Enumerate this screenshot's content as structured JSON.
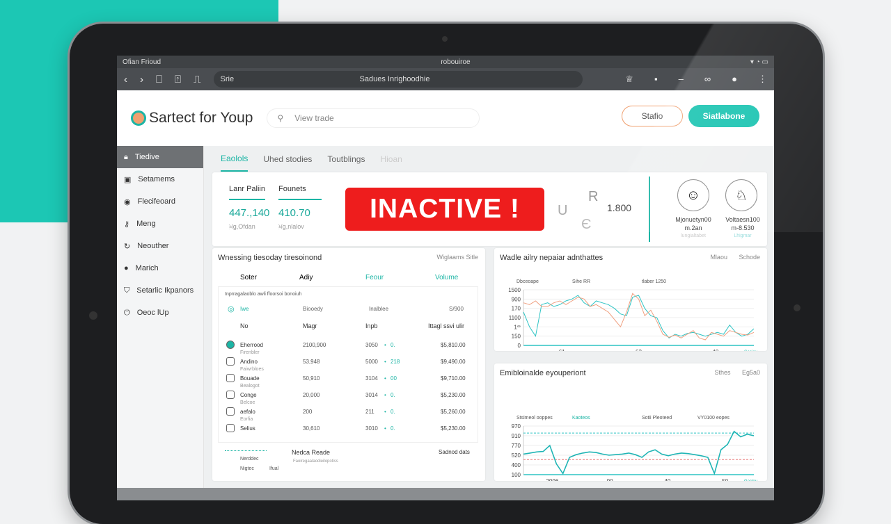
{
  "status_bar": {
    "left": "Ofian Frioud",
    "center": "robouiroe"
  },
  "browser": {
    "url_left": "Srie",
    "url": "Sadues Inrighoodhie"
  },
  "app": {
    "logo": "Sartect for Youp",
    "search_placeholder": "View trade",
    "btn_outline": "Stafio",
    "btn_primary": "Siatlabone"
  },
  "sidebar": {
    "items": [
      {
        "label": "Tiedive",
        "icon": "lock-icon",
        "active": true
      },
      {
        "label": "Setamems",
        "icon": "calendar-icon"
      },
      {
        "label": "Flecifeoard",
        "icon": "globe-icon"
      },
      {
        "label": "Meng",
        "icon": "key-icon"
      },
      {
        "label": "Neouther",
        "icon": "refresh-icon"
      },
      {
        "label": "Marich",
        "icon": "circle-icon"
      },
      {
        "label": "Setarlic Ikpanors",
        "icon": "shield-icon"
      },
      {
        "label": "Oeoc lUp",
        "icon": "power-icon"
      }
    ]
  },
  "tabs": [
    {
      "label": "Eaolols",
      "active": true
    },
    {
      "label": "Uhed stodies"
    },
    {
      "label": "Toutblings"
    },
    {
      "label": "Hioan"
    }
  ],
  "kpis": [
    {
      "label": "Lanr Paliin",
      "value": "447.,140",
      "sub": "ਖ਼g,Ofdan"
    },
    {
      "label": "Founets",
      "value": "410.70",
      "sub": "ਖ਼g,nlalov"
    }
  ],
  "alert": {
    "text": "INACTIVE  !",
    "color": "#ee1d1d"
  },
  "mini": {
    "l1": "U",
    "l2": "R",
    "l3": "Є",
    "value": "1.800"
  },
  "users": [
    {
      "name": "Mjonuetyn00",
      "sub": "m.2an",
      "meta": "lungialtabet"
    },
    {
      "name": "Voltaesn100",
      "sub": "m-8.530",
      "meta": "Lhigmar"
    }
  ],
  "table_panel": {
    "title": "Wnessing tiesoday tiresoinond",
    "right": "Wiglaams  Sitle",
    "cols": [
      "Soter",
      "Adiy",
      "Feour",
      "Volume"
    ],
    "caption": "Inprragalaoblo awli ffoorsoi bonoiuh",
    "filter": [
      "Iwe",
      "Biooedy",
      "Inalblee",
      "S/900"
    ],
    "headers": [
      "No",
      "Magr",
      "Inpb",
      "Ittagl ssvi ulir"
    ],
    "rows": [
      {
        "sub": "",
        "name": "Eherrood",
        "a": "2100,900",
        "b": "3050",
        "c": "0.",
        "d": "$5,810.00"
      },
      {
        "sub": "Firenbler",
        "name": "Andino",
        "a": "53,948",
        "b": "5000",
        "c": "218",
        "d": "$9,490.00"
      },
      {
        "sub": "Faiwrbloes",
        "name": "Bouade",
        "a": "50,910",
        "b": "3104",
        "c": "00",
        "d": "$9,710.00"
      },
      {
        "sub": "Bealogot",
        "name": "Conge",
        "a": "20,000",
        "b": "3014",
        "c": "0.",
        "d": "$5,230.00"
      },
      {
        "sub": "Belcoe",
        "name": "aefalo",
        "a": "200",
        "b": "211",
        "c": "0.",
        "d": "$5,260.00"
      },
      {
        "sub": "Eorfia",
        "name": "Selius",
        "a": "30,610",
        "b": "3010",
        "c": "0.",
        "d": "$5,230.00"
      }
    ],
    "footer": {
      "l1": "Nerddec",
      "l2": "Nigtec",
      "l3": "Ifual",
      "title": "Nedca Reade",
      "subtitle": "Faoiregaalaodieilopotiss",
      "right": "Sadnod dats"
    }
  },
  "chart_data": [
    {
      "type": "line",
      "title": "Wadle ailry nepaiar adnthattes",
      "right_labels": [
        "Mlaou",
        "Schode"
      ],
      "legend_text": [
        "Dbceoape",
        "Sihe RR",
        "tlaber 1250"
      ],
      "yticks": [
        "1500",
        "900",
        "170",
        "1100",
        "1ꟹ",
        "150",
        "0"
      ],
      "xticks": [
        "61",
        "63",
        "40"
      ],
      "footer": [
        "Gaciou",
        "Greaocdis eonoe"
      ],
      "series": [
        {
          "color": "#2ec4c4",
          "values": [
            900,
            500,
            250,
            1100,
            1150,
            1050,
            1100,
            1200,
            1250,
            1350,
            1150,
            1050,
            1200,
            1150,
            1100,
            1000,
            850,
            800,
            1300,
            1350,
            1000,
            800,
            750,
            400,
            200,
            300,
            250,
            320,
            350,
            300,
            250,
            300,
            350,
            300,
            550,
            350,
            250,
            300,
            450
          ]
        },
        {
          "color": "#f0a080",
          "values": [
            1150,
            1100,
            1200,
            1050,
            1050,
            1150,
            1200,
            1100,
            1200,
            1300,
            1250,
            1050,
            1100,
            1000,
            900,
            700,
            500,
            900,
            1400,
            1250,
            800,
            950,
            650,
            300,
            220,
            280,
            200,
            300,
            400,
            200,
            150,
            350,
            300,
            250,
            400,
            350,
            300,
            280,
            350
          ]
        }
      ]
    },
    {
      "type": "line",
      "title": "Emibloinalde eyouperiont",
      "right_labels": [
        "Sthes",
        "Eg5a0"
      ],
      "legend_text": [
        "Stsimeol ooppes",
        "Kaoteos",
        "Sotii Pleoteed",
        "VY0100 eopes"
      ],
      "yticks": [
        "970",
        "910",
        "770",
        "520",
        "400",
        "100"
      ],
      "xticks": [
        "2006",
        "00",
        "40",
        "50"
      ],
      "footer": [
        "Gaclou"
      ],
      "reference_lines": [
        {
          "value": 870,
          "color": "#2ec4c4",
          "dashed": true
        },
        {
          "value": 380,
          "color": "#e88080",
          "dashed": true
        }
      ],
      "series": [
        {
          "color": "#1fb5b5",
          "values": [
            480,
            500,
            520,
            530,
            640,
            300,
            120,
            420,
            470,
            500,
            520,
            510,
            480,
            460,
            470,
            480,
            500,
            470,
            420,
            520,
            560,
            480,
            450,
            480,
            500,
            490,
            470,
            450,
            420,
            120,
            560,
            660,
            900,
            800,
            850,
            820
          ]
        }
      ]
    }
  ]
}
